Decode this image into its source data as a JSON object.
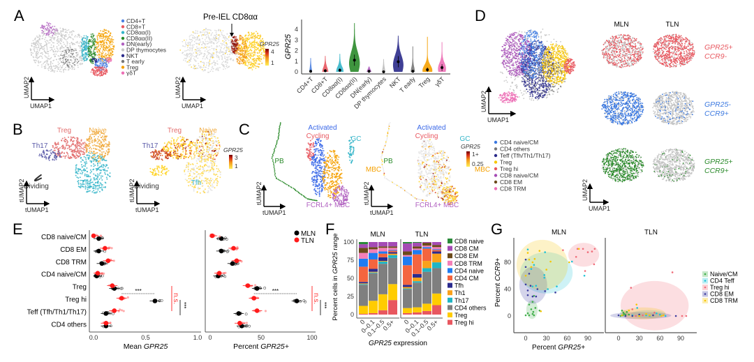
{
  "panels": {
    "A": {
      "label": "A",
      "axis_x": "UMAP1",
      "axis_y": "UMAP2",
      "legend": [
        {
          "label": "CD4+T",
          "color": "#4a7fe0"
        },
        {
          "label": "CD8+T",
          "color": "#e8575f"
        },
        {
          "label": "CD8αα(I)",
          "color": "#35b5c9"
        },
        {
          "label": "CD8αα(II)",
          "color": "#2a8a2a"
        },
        {
          "label": "DN(early)",
          "color": "#b060c0"
        },
        {
          "label": "DP thymocytes",
          "color": "#c8c8c8"
        },
        {
          "label": "NKT",
          "color": "#2a2a8a"
        },
        {
          "label": "T early",
          "color": "#777777"
        },
        {
          "label": "Treg",
          "color": "#f5a000"
        },
        {
          "label": "γδT",
          "color": "#ec6fb5"
        }
      ],
      "annotation": "Pre-IEL CD8αα",
      "colorbar": {
        "title": "GPR25",
        "ticks": [
          "4",
          "1"
        ]
      }
    },
    "B": {
      "label": "B",
      "axis_x": "tUMAP1",
      "axis_y": "tUMAP2",
      "clusters": [
        {
          "label": "Treg",
          "color": "#e26b6b"
        },
        {
          "label": "Naive",
          "color": "#f0a83a"
        },
        {
          "label": "Th17",
          "color": "#5a5aa8"
        },
        {
          "label": "Dividing",
          "color": "#333333"
        },
        {
          "label": "Tfh",
          "color": "#35b5c9"
        }
      ],
      "colorbar": {
        "title": "GPR25",
        "ticks": [
          "3",
          "1"
        ]
      }
    },
    "C": {
      "label": "C",
      "axis_x": "tUMAP1",
      "axis_y": "tUMAP2",
      "clusters": [
        {
          "label": "Activated",
          "color": "#3a68e8"
        },
        {
          "label": "Cycling",
          "color": "#e8575f"
        },
        {
          "label": "GC",
          "color": "#35b5c9"
        },
        {
          "label": "PB",
          "color": "#2a8a2a"
        },
        {
          "label": "MBC",
          "color": "#f5a000"
        },
        {
          "label": "FCRL4+ MBC",
          "color": "#b060c0"
        }
      ],
      "colorbar": {
        "title": "GPR25",
        "ticks": [
          "1+",
          "0.25"
        ]
      }
    },
    "D": {
      "label": "D",
      "axis_x": "UMAP1",
      "axis_y": "UMAP2",
      "legend": [
        {
          "label": "CD4 naive/CM",
          "color": "#3a78e0"
        },
        {
          "label": "CD4 others",
          "color": "#777777"
        },
        {
          "label": "Teff (Tfh/Th1/Th17)",
          "color": "#2a2a8a"
        },
        {
          "label": "Treg",
          "color": "#f7c600"
        },
        {
          "label": "Treg hi",
          "color": "#e8575f"
        },
        {
          "label": "CD8 naive/CM",
          "color": "#a54bb5"
        },
        {
          "label": "CD8 EM",
          "color": "#6b4a1a"
        },
        {
          "label": "CD8 TRM",
          "color": "#ec6fb5"
        }
      ],
      "columns": [
        "MLN",
        "TLN"
      ],
      "rows": [
        {
          "line1": "GPR25+",
          "line2": "CCR9-",
          "color": "#e8575f",
          "fraction_MLN": 0.55,
          "fraction_TLN": 0.8
        },
        {
          "line1": "GPR25-",
          "line2": "CCR9+",
          "color": "#3a78e0",
          "fraction_MLN": 0.8,
          "fraction_TLN": 0.12
        },
        {
          "line1": "GPR25+",
          "line2": "CCR9+",
          "color": "#2a8a2a",
          "fraction_MLN": 0.75,
          "fraction_TLN": 0.08
        }
      ]
    },
    "E": {
      "label": "E"
    },
    "F": {
      "label": "F"
    },
    "G": {
      "label": "G"
    }
  },
  "chart_data": [
    {
      "id": "A-violin",
      "type": "violin",
      "ylabel": "GPR25",
      "ylim": [
        0,
        4.7
      ],
      "yticks": [
        "0",
        "1",
        "2",
        "3",
        "4"
      ],
      "categories": [
        "CD4+T",
        "CD8+T",
        "CD8αα(I)",
        "CD8αα(II)",
        "DN(early)",
        "DP thymocytes",
        "NKT",
        "T early",
        "Treg",
        "γδT"
      ],
      "median": [
        0.05,
        0.1,
        0.15,
        1.1,
        0.05,
        0.0,
        0.95,
        0.05,
        0.2,
        0.4
      ],
      "max": [
        1.3,
        1.5,
        1.7,
        4.6,
        0.5,
        1.2,
        3.4,
        2.4,
        3.3,
        2.8
      ],
      "colors": [
        "#4a7fe0",
        "#e8575f",
        "#35b5c9",
        "#2a8a2a",
        "#b060c0",
        "#bbbbbb",
        "#2a2a8a",
        "#777777",
        "#f5a000",
        "#ec6fb5"
      ]
    },
    {
      "id": "E-mean",
      "type": "dot",
      "xlabel_prefix": "Mean ",
      "xlabel_gene": "GPR25",
      "xlim": [
        0,
        1.0
      ],
      "xticks": [
        "0.0",
        "0.5",
        "1.0"
      ],
      "categories": [
        "CD8 naive/CM",
        "CD8 EM",
        "CD8 TRM",
        "CD4 naive/CM",
        "Treg",
        "Treg hi",
        "Teff (Tfh/Th1/Th17)",
        "CD4 others"
      ],
      "series": [
        {
          "name": "MLN",
          "color": "#000000",
          "values": [
            0.05,
            0.05,
            0.08,
            0.03,
            0.2,
            0.59,
            0.12,
            0.12
          ]
        },
        {
          "name": "TLN",
          "color": "#ff1a1a",
          "values": [
            0.0,
            0.11,
            0.14,
            0.04,
            0.18,
            0.27,
            0.2,
            0.12
          ]
        }
      ],
      "annotations": {
        "treg_comparison": "***",
        "red_bracket": "n.s.",
        "black_bracket": "***"
      }
    },
    {
      "id": "E-percent",
      "type": "dot",
      "xlabel_prefix": "Percent ",
      "xlabel_gene": "GPR25+",
      "xlim": [
        0,
        100
      ],
      "xticks": [
        "0",
        "50",
        "100"
      ],
      "legend": [
        "MLN",
        "TLN"
      ],
      "series": [
        {
          "name": "MLN",
          "color": "#000000",
          "values": [
            11,
            11,
            22,
            8,
            46,
            85,
            28,
            31
          ]
        },
        {
          "name": "TLN",
          "color": "#ff1a1a",
          "values": [
            2,
            23,
            26,
            9,
            37,
            43,
            46,
            29
          ]
        }
      ],
      "annotations": {
        "treg_comparison": "***",
        "red_bracket": "n.s.",
        "black_bracket": "***"
      }
    },
    {
      "id": "F-stacked",
      "type": "bar",
      "stacked": true,
      "ylabel_prefix": "Percent cells in ",
      "ylabel_gene": "GPR25",
      "ylabel_suffix": " range",
      "xlabel_gene": "GPR25",
      "xlabel_suffix": " expression",
      "ylim": [
        0,
        100
      ],
      "yticks": [
        "0",
        "25",
        "50",
        "75",
        "100"
      ],
      "facets": [
        "MLN",
        "TLN"
      ],
      "categories": [
        "0",
        "0–0.1",
        "0.1–0.5",
        "0.5+"
      ],
      "series": [
        {
          "name": "Treg hi",
          "color": "#e8575f",
          "MLN": [
            1,
            2,
            6,
            20
          ],
          "TLN": [
            2,
            3,
            5,
            13
          ]
        },
        {
          "name": "Treg",
          "color": "#ffcc00",
          "MLN": [
            11,
            17,
            22,
            22
          ],
          "TLN": [
            7,
            7,
            10,
            16
          ]
        },
        {
          "name": "CD4 others",
          "color": "#7f7f7f",
          "MLN": [
            29,
            38,
            42,
            36
          ],
          "TLN": [
            26,
            34,
            44,
            35
          ]
        },
        {
          "name": "Th17",
          "color": "#1fb5c4",
          "MLN": [
            1,
            1,
            3,
            4
          ],
          "TLN": [
            1,
            2,
            5,
            8
          ]
        },
        {
          "name": "Th1",
          "color": "#f9a11b",
          "MLN": [
            1,
            1,
            1,
            2
          ],
          "TLN": [
            2,
            5,
            10,
            12
          ]
        },
        {
          "name": "Tfh",
          "color": "#2b2b8f",
          "MLN": [
            2,
            4,
            5,
            2
          ],
          "TLN": [
            3,
            5,
            0,
            3
          ]
        },
        {
          "name": "CD4 CM",
          "color": "#f4653f",
          "MLN": [
            21,
            13,
            5,
            2
          ],
          "TLN": [
            27,
            27,
            17,
            2
          ]
        },
        {
          "name": "CD4 naive",
          "color": "#1f7cf2",
          "MLN": [
            11,
            9,
            3,
            1
          ],
          "TLN": [
            12,
            6,
            2,
            1
          ]
        },
        {
          "name": "CD8 TRM",
          "color": "#f47fb8",
          "MLN": [
            8,
            5,
            5,
            3
          ],
          "TLN": [
            2,
            2,
            2,
            3
          ]
        },
        {
          "name": "CD8 EM",
          "color": "#6b4a1a",
          "MLN": [
            7,
            3,
            2,
            2
          ],
          "TLN": [
            5,
            3,
            4,
            3
          ]
        },
        {
          "name": "CD8 CM",
          "color": "#a54bb5",
          "MLN": [
            5,
            7,
            6,
            6
          ],
          "TLN": [
            11,
            5,
            1,
            4
          ]
        },
        {
          "name": "CD8 naive",
          "color": "#2a8a3a",
          "MLN": [
            3,
            0,
            0,
            0
          ],
          "TLN": [
            2,
            1,
            0,
            0
          ]
        }
      ]
    },
    {
      "id": "G-scatter",
      "type": "scatter",
      "xlabel_prefix": "Percent ",
      "xlabel_gene": "GPR25+",
      "ylabel_prefix": "Percent ",
      "ylabel_gene": "CCR9+",
      "xlim": [
        -15,
        115
      ],
      "ylim": [
        -25,
        115
      ],
      "xticks": [
        "0",
        "30",
        "60",
        "90"
      ],
      "yticks": [
        "0",
        "40",
        "80"
      ],
      "facets": [
        "MLN",
        "TLN"
      ],
      "series": [
        {
          "name": "Naive/CM",
          "color": "#3fae49",
          "MLN": [
            [
              0,
              1
            ],
            [
              3,
              4
            ],
            [
              5,
              1
            ],
            [
              10,
              3
            ],
            [
              11,
              6
            ],
            [
              12,
              1
            ],
            [
              5,
              17
            ],
            [
              10,
              21
            ],
            [
              12,
              30
            ],
            [
              14,
              12
            ],
            [
              20,
              8
            ],
            [
              8,
              10
            ]
          ],
          "TLN": [
            [
              5,
              8
            ],
            [
              7,
              5
            ],
            [
              8,
              3
            ],
            [
              10,
              2
            ],
            [
              12,
              6
            ],
            [
              6,
              1
            ],
            [
              3,
              0
            ],
            [
              15,
              2
            ]
          ]
        },
        {
          "name": "CD4 Teff",
          "color": "#1fc3d6",
          "MLN": [
            [
              3,
              99
            ],
            [
              28,
              95
            ],
            [
              12,
              76
            ],
            [
              27,
              61
            ],
            [
              27,
              57
            ],
            [
              45,
              44
            ],
            [
              15,
              45
            ],
            [
              8,
              70
            ],
            [
              10,
              44
            ],
            [
              67,
              81
            ],
            [
              85,
              60
            ],
            [
              32,
              40
            ]
          ],
          "TLN": [
            [
              27,
              12
            ],
            [
              30,
              2
            ],
            [
              40,
              1
            ],
            [
              55,
              4
            ],
            [
              60,
              2
            ],
            [
              68,
              0
            ],
            [
              20,
              1
            ],
            [
              45,
              0
            ]
          ]
        },
        {
          "name": "Treg hi",
          "color": "#f06b78",
          "MLN": [
            [
              54,
              98
            ],
            [
              73,
              88
            ],
            [
              75,
              100
            ],
            [
              83,
              100
            ],
            [
              90,
              95
            ],
            [
              96,
              96
            ],
            [
              100,
              100
            ],
            [
              99,
              77
            ],
            [
              86,
              67
            ]
          ],
          "TLN": [
            [
              18,
              42
            ],
            [
              78,
              65
            ],
            [
              92,
              0
            ],
            [
              98,
              0
            ],
            [
              25,
              0
            ],
            [
              52,
              5
            ],
            [
              35,
              1
            ],
            [
              20,
              10
            ]
          ]
        },
        {
          "name": "CD8 EM",
          "color": "#3b3b9e",
          "MLN": [
            [
              0,
              84
            ],
            [
              0,
              73
            ],
            [
              0,
              47
            ],
            [
              5,
              63
            ],
            [
              3,
              38
            ],
            [
              3,
              31
            ],
            [
              10,
              29
            ],
            [
              15,
              29
            ],
            [
              17,
              40
            ],
            [
              28,
              37
            ],
            [
              43,
              35
            ],
            [
              7,
              45
            ]
          ],
          "TLN": [
            [
              0,
              1
            ],
            [
              10,
              0
            ],
            [
              30,
              2
            ],
            [
              50,
              1
            ],
            [
              83,
              0
            ],
            [
              20,
              0
            ]
          ]
        },
        {
          "name": "CD8 TRM",
          "color": "#f7c600",
          "MLN": [
            [
              3,
              94
            ],
            [
              5,
              84
            ],
            [
              10,
              80
            ],
            [
              13,
              85
            ],
            [
              20,
              97
            ],
            [
              8,
              73
            ],
            [
              36,
              81
            ],
            [
              30,
              69
            ],
            [
              0,
              60
            ],
            [
              63,
              80
            ],
            [
              77,
              100
            ],
            [
              22,
              7
            ]
          ],
          "TLN": [
            [
              26,
              17
            ],
            [
              15,
              8
            ],
            [
              30,
              0
            ],
            [
              45,
              1
            ],
            [
              62,
              0
            ],
            [
              65,
              1
            ],
            [
              5,
              1
            ],
            [
              40,
              3
            ]
          ]
        }
      ]
    }
  ]
}
